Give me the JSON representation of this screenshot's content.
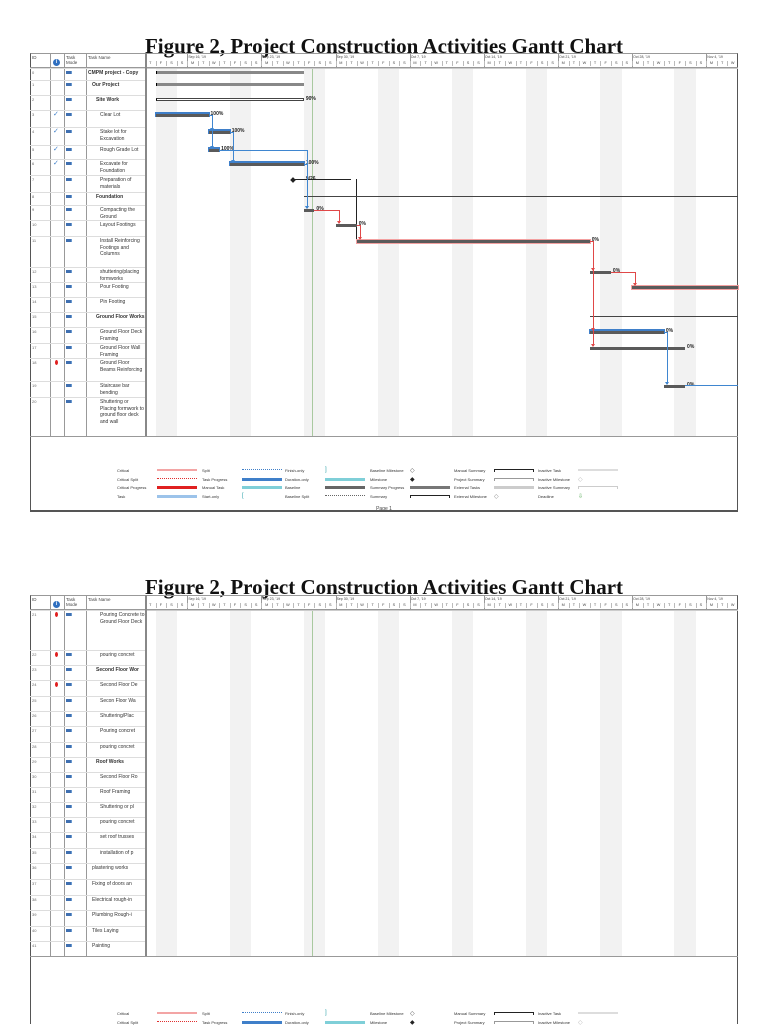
{
  "document": {
    "title": "Figure 2, Project Construction Activities Gantt Chart",
    "page_label": "Page 1"
  },
  "columns": {
    "id": "ID",
    "info": "i",
    "mode": "Task Mode",
    "name": "Task Name"
  },
  "timescale": {
    "start": "2019-09-12",
    "days": 56,
    "week_labels": [
      "Sep 16, '19",
      "Sep 23, '19",
      "Sep 30, '19",
      "Oct 7, '19",
      "Oct 14, '19",
      "Oct 21, '19",
      "Oct 28, '19",
      "Nov 4, '19"
    ],
    "day_letters": [
      "M",
      "T",
      "W",
      "T",
      "F",
      "S",
      "S"
    ]
  },
  "colors": {
    "task_bar": "#5a5a5a",
    "progress": "#3f7fc9",
    "critical": "#e06060",
    "link_blue": "#3f86d0",
    "link_red": "#e04848",
    "summary": "#555555",
    "weekend": "#f2f2f2",
    "status_line": "#a9c9a0"
  },
  "pages": [
    {
      "rows": [
        {
          "id": "0",
          "name": "CMPM project - Copy",
          "bold": true,
          "indent": 0,
          "bar": {
            "type": "summary",
            "start": "2019-09-13",
            "end": "2019-09-26"
          }
        },
        {
          "id": "1",
          "name": "Our Project",
          "bold": true,
          "indent": 1,
          "bar": {
            "type": "summary-open",
            "start": "2019-09-13",
            "end": "2019-09-26"
          }
        },
        {
          "id": "2",
          "name": "Site Work",
          "bold": true,
          "indent": 2,
          "bar": {
            "type": "manual-summary",
            "start": "2019-09-13",
            "end": "2019-09-26",
            "label": "90%"
          }
        },
        {
          "id": "3",
          "name": "Clear Lot",
          "indent": 3,
          "done": true,
          "bar": {
            "type": "task-done",
            "start": "2019-09-13",
            "end": "2019-09-17",
            "label": "100%"
          }
        },
        {
          "id": "4",
          "name": "Stake lot for Excavation",
          "indent": 3,
          "done": true,
          "bar": {
            "type": "task-done",
            "start": "2019-09-18",
            "end": "2019-09-19",
            "label": "100%"
          }
        },
        {
          "id": "5",
          "name": "Rough Grade Lot",
          "indent": 3,
          "done": true,
          "bar": {
            "type": "task-done",
            "start": "2019-09-18",
            "end": "2019-09-18",
            "label": "100%"
          }
        },
        {
          "id": "6",
          "name": "Excavate for Foundation",
          "indent": 3,
          "done": true,
          "bar": {
            "type": "task-done",
            "start": "2019-09-20",
            "end": "2019-09-26",
            "label": "100%"
          }
        },
        {
          "id": "7",
          "name": "Preparation of materials",
          "indent": 3,
          "bar": {
            "type": "milestone",
            "start": "2019-09-26",
            "end": "2019-09-26",
            "label": "9/26"
          }
        },
        {
          "id": "8",
          "name": "Foundation",
          "bold": true,
          "indent": 2,
          "bar": {
            "type": "summary-line",
            "start": "2019-09-27",
            "end": "2019-11-06"
          }
        },
        {
          "id": "9",
          "name": "Compacting the Ground",
          "indent": 3,
          "bar": {
            "type": "task",
            "start": "2019-09-27",
            "end": "2019-09-27",
            "label": "0%"
          }
        },
        {
          "id": "10",
          "name": "Layout Footings",
          "indent": 3,
          "bar": {
            "type": "task",
            "start": "2019-09-30",
            "end": "2019-10-01",
            "label": "0%"
          }
        },
        {
          "id": "11",
          "name": "Install Reinforcing Footings and Columns",
          "indent": 3,
          "bar": {
            "type": "critical",
            "start": "2019-10-02",
            "end": "2019-10-23",
            "label": "0%"
          }
        },
        {
          "id": "12",
          "name": "shuttering/placing formworks",
          "indent": 3,
          "bar": {
            "type": "task",
            "start": "2019-10-24",
            "end": "2019-10-25",
            "label": "0%"
          }
        },
        {
          "id": "13",
          "name": "Pour Footing",
          "indent": 3,
          "bar": {
            "type": "critical",
            "start": "2019-10-28",
            "end": "2019-11-06"
          }
        },
        {
          "id": "14",
          "name": "Pin Footing",
          "indent": 3
        },
        {
          "id": "15",
          "name": "Ground Floor Works",
          "bold": true,
          "indent": 2,
          "bar": {
            "type": "summary-line",
            "start": "2019-10-24",
            "end": "2019-11-06"
          }
        },
        {
          "id": "16",
          "name": "Ground Floor Deck Framing",
          "indent": 3,
          "bar": {
            "type": "task-blue",
            "start": "2019-10-24",
            "end": "2019-10-30",
            "label": "0%"
          }
        },
        {
          "id": "17",
          "name": "Ground Floor Wall Framing",
          "indent": 3,
          "bar": {
            "type": "task",
            "start": "2019-10-24",
            "end": "2019-11-01",
            "label": "0%"
          }
        },
        {
          "id": "18",
          "name": "Ground Floor Beams Reinforcing",
          "indent": 3,
          "flag": true
        },
        {
          "id": "19",
          "name": "Staircase bar bending",
          "indent": 3,
          "bar": {
            "type": "task",
            "start": "2019-10-31",
            "end": "2019-11-01",
            "label": "0%"
          }
        },
        {
          "id": "20",
          "name": "Shuttering or Placing formwork to ground floor deck and wall",
          "indent": 3
        }
      ]
    },
    {
      "rows": [
        {
          "id": "21",
          "name": "Pouring Concrete to Ground Floor Deck",
          "indent": 3,
          "flag": true
        },
        {
          "id": "22",
          "name": "pouring concret",
          "indent": 3,
          "flag": true
        },
        {
          "id": "23",
          "name": "Second Floor Wor",
          "bold": true,
          "indent": 2
        },
        {
          "id": "24",
          "name": "Second Floor De",
          "indent": 3,
          "flag": true
        },
        {
          "id": "25",
          "name": "Secon Floor Wa",
          "indent": 3
        },
        {
          "id": "26",
          "name": "Shuttering/Plac",
          "indent": 3
        },
        {
          "id": "27",
          "name": "Pouring concret",
          "indent": 3
        },
        {
          "id": "28",
          "name": "pouring concret",
          "indent": 3
        },
        {
          "id": "29",
          "name": "Roof Works",
          "bold": true,
          "indent": 2
        },
        {
          "id": "30",
          "name": "Second Floor Ro",
          "indent": 3
        },
        {
          "id": "31",
          "name": "Roof Framing",
          "indent": 3
        },
        {
          "id": "32",
          "name": "Shuttering or pl",
          "indent": 3
        },
        {
          "id": "33",
          "name": "pouring concret",
          "indent": 3
        },
        {
          "id": "34",
          "name": "set roof trusses",
          "indent": 3
        },
        {
          "id": "35",
          "name": "installation of p",
          "indent": 3
        },
        {
          "id": "36",
          "name": "plastering works",
          "indent": 1
        },
        {
          "id": "37",
          "name": "Fixing of doors an",
          "indent": 1
        },
        {
          "id": "38",
          "name": "Electrical rough-in",
          "indent": 1
        },
        {
          "id": "39",
          "name": "Plumbing Rough-i",
          "indent": 1
        },
        {
          "id": "40",
          "name": "Tiles Laying",
          "indent": 1
        },
        {
          "id": "41",
          "name": "Painting",
          "indent": 1
        }
      ]
    }
  ],
  "legend": [
    [
      {
        "label": "Critical",
        "style": "critical"
      },
      {
        "label": "Critical Split",
        "style": "critical-split"
      },
      {
        "label": "Critical Progress",
        "style": "critical-progress"
      },
      {
        "label": "Task",
        "style": "task"
      }
    ],
    [
      {
        "label": "Split",
        "style": "split"
      },
      {
        "label": "Task Progress",
        "style": "task-progress"
      },
      {
        "label": "Manual Task",
        "style": "manual-task"
      },
      {
        "label": "Start-only",
        "style": "start-only"
      }
    ],
    [
      {
        "label": "Finish-only",
        "style": "finish-only"
      },
      {
        "label": "Duration-only",
        "style": "duration-only"
      },
      {
        "label": "Baseline",
        "style": "baseline"
      },
      {
        "label": "Baseline Split",
        "style": "baseline-split"
      }
    ],
    [
      {
        "label": "Baseline Milestone",
        "style": "baseline-milestone"
      },
      {
        "label": "Milestone",
        "style": "milestone"
      },
      {
        "label": "Summary Progress",
        "style": "summary-progress"
      },
      {
        "label": "Summary",
        "style": "summary"
      }
    ],
    [
      {
        "label": "Manual Summary",
        "style": "manual-summary"
      },
      {
        "label": "Project Summary",
        "style": "project-summary"
      },
      {
        "label": "External Tasks",
        "style": "external-tasks"
      },
      {
        "label": "External Milestone",
        "style": "external-milestone"
      }
    ],
    [
      {
        "label": "Inactive Task",
        "style": "inactive-task"
      },
      {
        "label": "Inactive Milestone",
        "style": "inactive-milestone"
      },
      {
        "label": "Inactive Summary",
        "style": "inactive-summary"
      },
      {
        "label": "Deadline",
        "style": "deadline"
      }
    ]
  ]
}
